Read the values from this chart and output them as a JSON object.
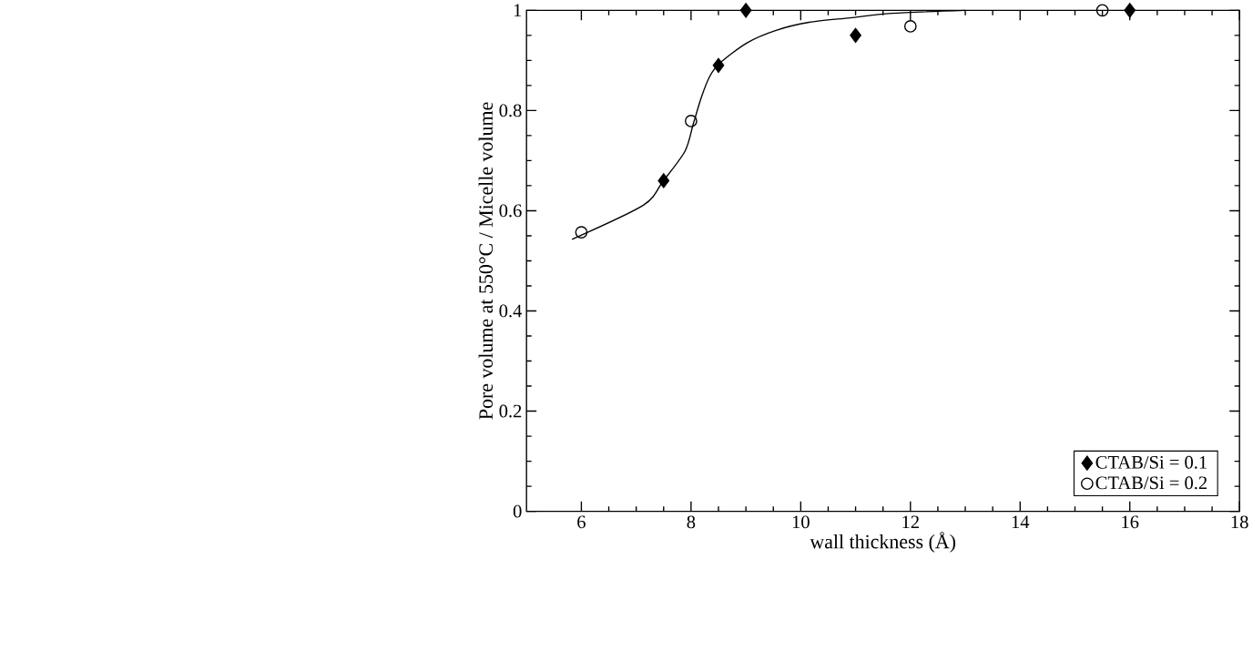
{
  "chart_data": {
    "type": "scatter",
    "xlabel": "wall thickness (Å)",
    "ylabel": "Pore volume at 550°C / Micelle volume",
    "xlim": [
      5,
      18
    ],
    "xticks": [
      6,
      8,
      10,
      12,
      14,
      16,
      18
    ],
    "ylim": [
      0,
      1
    ],
    "yticks": [
      0,
      0.2,
      0.4,
      0.6,
      0.8,
      1
    ],
    "legend": "bottom right",
    "grid": false,
    "series": [
      {
        "name": "CTAB/Si = 0.1",
        "color": "#000000",
        "marker": "diamond",
        "x": [
          7.5,
          8.5,
          9,
          11,
          16
        ],
        "values": [
          0.66,
          0.89,
          1.0,
          0.95,
          1.0
        ]
      },
      {
        "name": "CTAB/Si = 0.2",
        "color": "#000000",
        "marker": "circle",
        "x": [
          6,
          8,
          12,
          15.5
        ],
        "values": [
          0.557,
          0.779,
          0.968,
          1.0
        ]
      },
      {
        "type": "line",
        "color": "#000000",
        "marker": "none",
        "line_style": "solid",
        "x": [
          5.83,
          7.13,
          7.49,
          7.89,
          8.04,
          8.19,
          8.34,
          8.53,
          9.02,
          9.55,
          10.15,
          10.9,
          11.66,
          13
        ],
        "values": [
          0.543,
          0.611,
          0.659,
          0.719,
          0.773,
          0.827,
          0.868,
          0.895,
          0.935,
          0.96,
          0.976,
          0.985,
          0.994,
          1.0
        ]
      }
    ]
  }
}
